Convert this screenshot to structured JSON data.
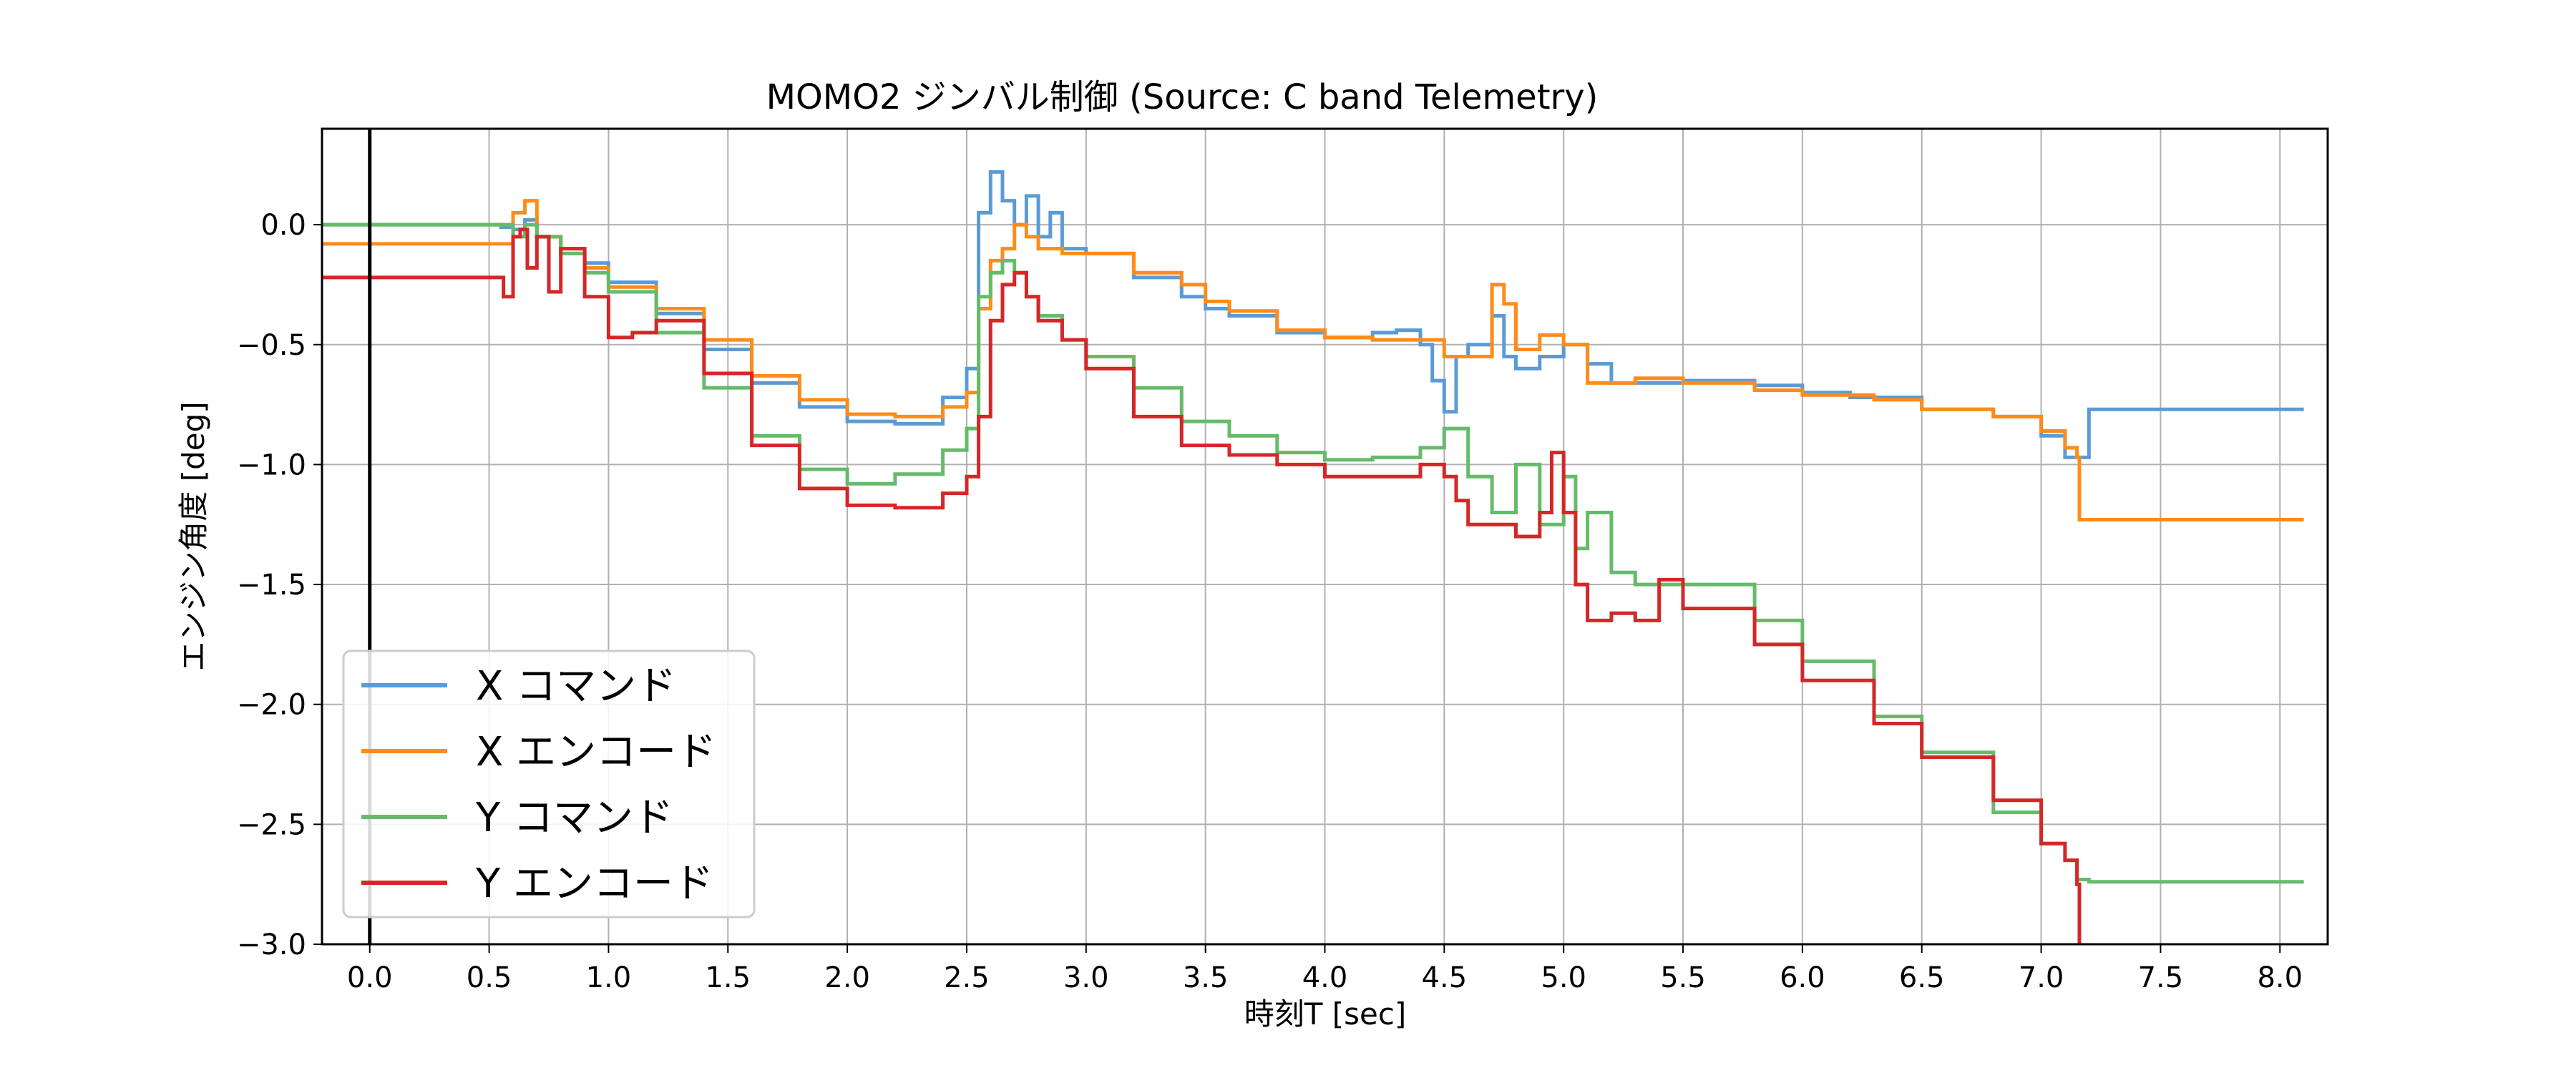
{
  "chart_data": {
    "type": "line",
    "title": "MOMO2 ジンバル制御 (Source: C band Telemetry)",
    "xlabel": "時刻T [sec]",
    "ylabel": "エンジン角度 [deg]",
    "xlim": [
      -0.2,
      8.2
    ],
    "ylim": [
      -3.0,
      0.4
    ],
    "xticks": [
      0.0,
      0.5,
      1.0,
      1.5,
      2.0,
      2.5,
      3.0,
      3.5,
      4.0,
      4.5,
      5.0,
      5.5,
      6.0,
      6.5,
      7.0,
      7.5,
      8.0
    ],
    "xtick_labels": [
      "0.0",
      "0.5",
      "1.0",
      "1.5",
      "2.0",
      "2.5",
      "3.0",
      "3.5",
      "4.0",
      "4.5",
      "5.0",
      "5.5",
      "6.0",
      "6.5",
      "7.0",
      "7.5",
      "8.0"
    ],
    "yticks": [
      0.0,
      -0.5,
      -1.0,
      -1.5,
      -2.0,
      -2.5,
      -3.0
    ],
    "ytick_labels": [
      "0.0",
      "−0.5",
      "−1.0",
      "−1.5",
      "−2.0",
      "−2.5",
      "−3.0"
    ],
    "grid": true,
    "legend_position": "lower-left",
    "vline_x": 0.0,
    "series": [
      {
        "name": "X コマンド",
        "color": "#5b9bd5",
        "x": [
          -0.2,
          0.0,
          0.5,
          0.55,
          0.6,
          0.65,
          0.7,
          0.8,
          0.9,
          1.0,
          1.2,
          1.4,
          1.6,
          1.8,
          2.0,
          2.2,
          2.4,
          2.5,
          2.55,
          2.6,
          2.65,
          2.7,
          2.75,
          2.8,
          2.85,
          2.9,
          3.0,
          3.2,
          3.4,
          3.5,
          3.6,
          3.8,
          4.0,
          4.2,
          4.3,
          4.4,
          4.45,
          4.5,
          4.55,
          4.6,
          4.7,
          4.75,
          4.8,
          4.9,
          5.0,
          5.1,
          5.2,
          5.5,
          5.8,
          6.0,
          6.2,
          6.5,
          6.8,
          7.0,
          7.1,
          7.15,
          7.2,
          8.1
        ],
        "y": [
          0.0,
          0.0,
          0.0,
          -0.01,
          -0.02,
          0.02,
          -0.05,
          -0.1,
          -0.16,
          -0.24,
          -0.37,
          -0.52,
          -0.66,
          -0.76,
          -0.82,
          -0.83,
          -0.72,
          -0.6,
          0.05,
          0.22,
          0.1,
          0.0,
          0.12,
          -0.05,
          0.05,
          -0.1,
          -0.12,
          -0.22,
          -0.3,
          -0.35,
          -0.38,
          -0.45,
          -0.47,
          -0.45,
          -0.44,
          -0.5,
          -0.65,
          -0.78,
          -0.55,
          -0.5,
          -0.38,
          -0.55,
          -0.6,
          -0.55,
          -0.5,
          -0.58,
          -0.66,
          -0.65,
          -0.67,
          -0.7,
          -0.72,
          -0.77,
          -0.8,
          -0.88,
          -0.97,
          -0.97,
          -0.77,
          -0.77
        ]
      },
      {
        "name": "X エンコード",
        "color": "#ff8c1a",
        "x": [
          -0.2,
          0.0,
          0.5,
          0.55,
          0.6,
          0.65,
          0.7,
          0.8,
          0.9,
          1.0,
          1.2,
          1.4,
          1.6,
          1.8,
          2.0,
          2.2,
          2.4,
          2.5,
          2.55,
          2.6,
          2.65,
          2.7,
          2.75,
          2.8,
          2.9,
          3.0,
          3.2,
          3.4,
          3.5,
          3.6,
          3.8,
          4.0,
          4.2,
          4.4,
          4.5,
          4.6,
          4.7,
          4.75,
          4.8,
          4.9,
          5.0,
          5.1,
          5.3,
          5.5,
          5.8,
          6.0,
          6.3,
          6.5,
          6.8,
          7.0,
          7.1,
          7.15,
          7.16,
          8.1
        ],
        "y": [
          -0.08,
          -0.08,
          -0.08,
          -0.08,
          0.05,
          0.1,
          -0.05,
          -0.12,
          -0.18,
          -0.26,
          -0.35,
          -0.48,
          -0.63,
          -0.73,
          -0.79,
          -0.8,
          -0.76,
          -0.7,
          -0.35,
          -0.15,
          -0.1,
          0.0,
          -0.05,
          -0.1,
          -0.12,
          -0.12,
          -0.2,
          -0.25,
          -0.32,
          -0.36,
          -0.44,
          -0.47,
          -0.48,
          -0.48,
          -0.55,
          -0.55,
          -0.25,
          -0.33,
          -0.52,
          -0.46,
          -0.5,
          -0.66,
          -0.64,
          -0.66,
          -0.69,
          -0.71,
          -0.73,
          -0.77,
          -0.8,
          -0.86,
          -0.93,
          -0.97,
          -1.23,
          -1.23
        ]
      },
      {
        "name": "Y コマンド",
        "color": "#66bb6a",
        "x": [
          -0.2,
          0.0,
          0.5,
          0.55,
          0.6,
          0.65,
          0.7,
          0.8,
          0.9,
          1.0,
          1.2,
          1.4,
          1.6,
          1.8,
          2.0,
          2.2,
          2.4,
          2.5,
          2.55,
          2.6,
          2.65,
          2.7,
          2.75,
          2.8,
          2.9,
          3.0,
          3.2,
          3.4,
          3.6,
          3.8,
          4.0,
          4.2,
          4.4,
          4.5,
          4.6,
          4.7,
          4.8,
          4.9,
          5.0,
          5.05,
          5.1,
          5.2,
          5.3,
          5.5,
          5.8,
          6.0,
          6.3,
          6.5,
          6.8,
          7.0,
          7.1,
          7.15,
          7.2,
          8.1
        ],
        "y": [
          0.0,
          0.0,
          0.0,
          0.0,
          -0.05,
          0.0,
          -0.05,
          -0.12,
          -0.2,
          -0.28,
          -0.45,
          -0.68,
          -0.88,
          -1.02,
          -1.08,
          -1.04,
          -0.94,
          -0.85,
          -0.3,
          -0.2,
          -0.15,
          -0.2,
          -0.3,
          -0.38,
          -0.48,
          -0.55,
          -0.68,
          -0.82,
          -0.88,
          -0.95,
          -0.98,
          -0.97,
          -0.93,
          -0.85,
          -1.05,
          -1.2,
          -1.0,
          -1.25,
          -1.05,
          -1.35,
          -1.2,
          -1.45,
          -1.5,
          -1.5,
          -1.65,
          -1.82,
          -2.05,
          -2.2,
          -2.45,
          -2.58,
          -2.65,
          -2.73,
          -2.74,
          -2.74
        ]
      },
      {
        "name": "Y エンコード",
        "color": "#d62728",
        "x": [
          -0.2,
          0.0,
          0.5,
          0.55,
          0.56,
          0.6,
          0.63,
          0.66,
          0.7,
          0.75,
          0.8,
          0.9,
          1.0,
          1.1,
          1.2,
          1.4,
          1.6,
          1.8,
          2.0,
          2.2,
          2.4,
          2.5,
          2.55,
          2.6,
          2.65,
          2.7,
          2.75,
          2.8,
          2.9,
          3.0,
          3.2,
          3.4,
          3.6,
          3.8,
          4.0,
          4.2,
          4.4,
          4.5,
          4.55,
          4.6,
          4.7,
          4.8,
          4.9,
          4.95,
          5.0,
          5.05,
          5.1,
          5.2,
          5.3,
          5.4,
          5.5,
          5.8,
          6.0,
          6.3,
          6.5,
          6.8,
          7.0,
          7.1,
          7.15,
          7.16
        ],
        "y": [
          -0.22,
          -0.22,
          -0.22,
          -0.22,
          -0.3,
          -0.05,
          -0.02,
          -0.18,
          -0.05,
          -0.28,
          -0.1,
          -0.3,
          -0.47,
          -0.45,
          -0.4,
          -0.62,
          -0.92,
          -1.1,
          -1.17,
          -1.18,
          -1.12,
          -1.05,
          -0.8,
          -0.4,
          -0.25,
          -0.2,
          -0.3,
          -0.4,
          -0.48,
          -0.6,
          -0.8,
          -0.92,
          -0.96,
          -1.0,
          -1.05,
          -1.05,
          -1.0,
          -1.05,
          -1.15,
          -1.25,
          -1.25,
          -1.3,
          -1.2,
          -0.95,
          -1.2,
          -1.5,
          -1.65,
          -1.62,
          -1.65,
          -1.48,
          -1.6,
          -1.75,
          -1.9,
          -2.08,
          -2.22,
          -2.4,
          -2.58,
          -2.65,
          -2.75,
          -3.0
        ]
      }
    ]
  }
}
